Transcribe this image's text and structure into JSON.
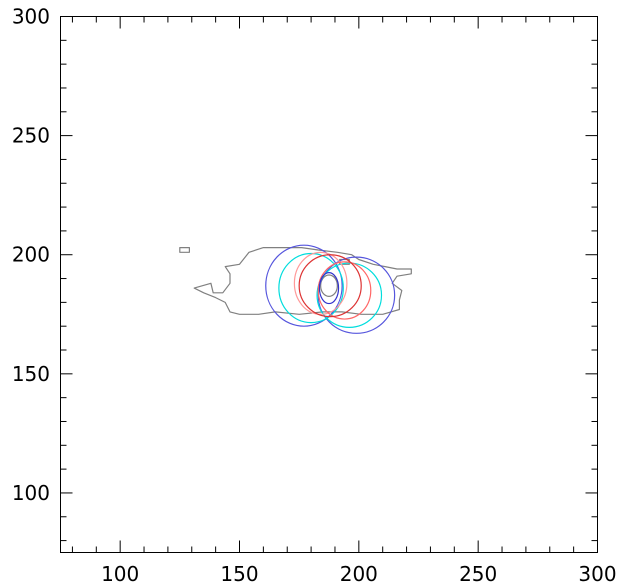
{
  "chart_data": {
    "type": "contour",
    "title": "",
    "xlabel": "",
    "ylabel": "",
    "xlim": [
      75,
      300
    ],
    "ylim": [
      75,
      300
    ],
    "x_ticks": [
      {
        "value": 100,
        "label": "100"
      },
      {
        "value": 150,
        "label": "150"
      },
      {
        "value": 200,
        "label": "200"
      },
      {
        "value": 250,
        "label": "250"
      },
      {
        "value": 300,
        "label": "300"
      }
    ],
    "y_ticks": [
      {
        "value": 100,
        "label": "100"
      },
      {
        "value": 150,
        "label": "150"
      },
      {
        "value": 200,
        "label": "200"
      },
      {
        "value": 250,
        "label": "250"
      },
      {
        "value": 300,
        "label": "300"
      }
    ],
    "minor_tick_step": 10,
    "grid": false,
    "series": [
      {
        "color": "#808080",
        "shape": "polygon",
        "points": [
          [
            125,
            203
          ],
          [
            129,
            203
          ],
          [
            129,
            201
          ],
          [
            125,
            201
          ]
        ]
      },
      {
        "color": "#808080",
        "shape": "polygon",
        "points": [
          [
            154,
            201
          ],
          [
            160,
            203
          ],
          [
            168,
            203
          ],
          [
            176,
            203
          ],
          [
            183,
            202
          ],
          [
            191,
            201
          ],
          [
            197,
            200
          ],
          [
            200,
            198
          ],
          [
            206,
            196
          ],
          [
            211,
            195
          ],
          [
            216,
            194
          ],
          [
            222,
            194
          ],
          [
            222,
            192
          ],
          [
            216,
            191
          ],
          [
            214,
            188
          ],
          [
            218,
            185
          ],
          [
            217,
            181
          ],
          [
            217,
            177
          ],
          [
            210,
            175
          ],
          [
            201,
            175
          ],
          [
            193,
            176
          ],
          [
            185,
            176
          ],
          [
            175,
            175
          ],
          [
            165,
            176
          ],
          [
            158,
            175
          ],
          [
            150,
            175
          ],
          [
            146,
            176
          ],
          [
            144,
            180
          ],
          [
            140,
            182
          ],
          [
            135,
            184
          ],
          [
            131,
            186
          ],
          [
            138,
            188
          ],
          [
            139,
            184
          ],
          [
            143,
            184
          ],
          [
            146,
            188
          ],
          [
            146,
            192
          ],
          [
            144,
            195
          ],
          [
            150,
            196
          ],
          [
            154,
            201
          ]
        ]
      },
      {
        "color": "#808080",
        "shape": "ellipse",
        "cx": 187.5,
        "cy": 187,
        "rx": 3.5,
        "ry": 4.5
      },
      {
        "color": "#808080",
        "shape": "polygon",
        "points": [
          [
            192,
            198
          ],
          [
            196,
            198
          ],
          [
            196,
            196
          ],
          [
            192,
            196
          ]
        ]
      },
      {
        "color": "#5555dd",
        "shape": "ellipse",
        "cx": 177,
        "cy": 187,
        "rx": 16,
        "ry": 17
      },
      {
        "color": "#5555dd",
        "shape": "ellipse",
        "cx": 199,
        "cy": 183,
        "rx": 16,
        "ry": 16
      },
      {
        "color": "#00dddd",
        "shape": "ellipse",
        "cx": 180,
        "cy": 186,
        "rx": 13.5,
        "ry": 14.5
      },
      {
        "color": "#00dddd",
        "shape": "ellipse",
        "cx": 196,
        "cy": 183,
        "rx": 13.5,
        "ry": 13.5
      },
      {
        "color": "#ff9999",
        "shape": "ellipse",
        "cx": 184,
        "cy": 188,
        "rx": 11,
        "ry": 13
      },
      {
        "color": "#ff6666",
        "shape": "ellipse",
        "cx": 194,
        "cy": 185,
        "rx": 11,
        "ry": 12
      },
      {
        "color": "#dd3333",
        "shape": "ellipse",
        "cx": 188,
        "cy": 187,
        "rx": 13,
        "ry": 13
      },
      {
        "color": "#3333cc",
        "shape": "ellipse",
        "cx": 187.5,
        "cy": 186,
        "rx": 4,
        "ry": 6.5
      }
    ]
  }
}
